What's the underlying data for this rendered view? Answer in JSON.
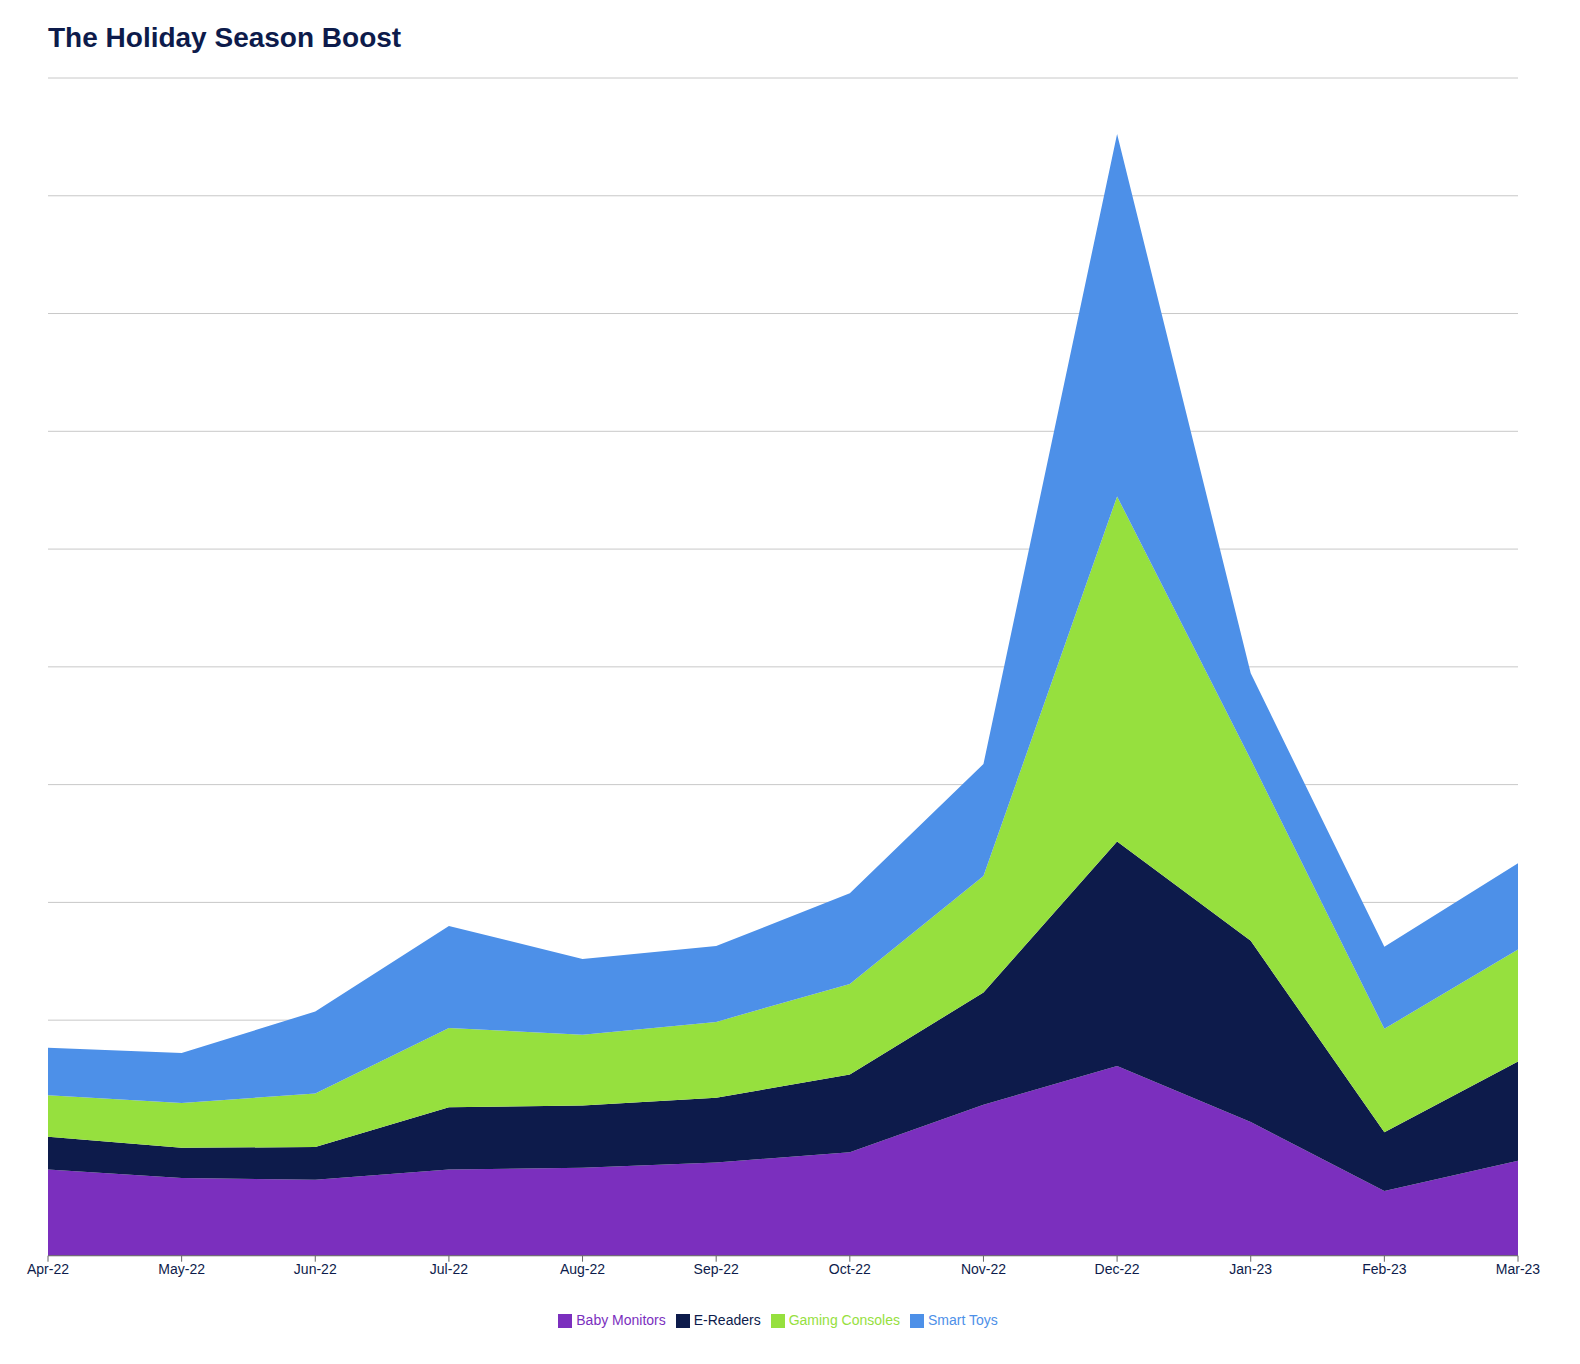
{
  "chart_data": {
    "type": "area",
    "title": "The Holiday Season Boost",
    "categories": [
      "Apr-22",
      "May-22",
      "Jun-22",
      "Jul-22",
      "Aug-22",
      "Sep-22",
      "Oct-22",
      "Nov-22",
      "Dec-22",
      "Jan-23",
      "Feb-23",
      "Mar-23"
    ],
    "series": [
      {
        "name": "Baby Monitors",
        "color": "#7B2FBE",
        "values": [
          100,
          90,
          88,
          100,
          102,
          108,
          120,
          175,
          220,
          155,
          75,
          110
        ]
      },
      {
        "name": "E-Readers",
        "color": "#0d1b4b",
        "values": [
          38,
          35,
          38,
          72,
          72,
          75,
          90,
          130,
          260,
          210,
          68,
          115
        ]
      },
      {
        "name": "Gaming Consoles",
        "color": "#96e03e",
        "values": [
          48,
          52,
          62,
          92,
          82,
          88,
          105,
          135,
          400,
          210,
          120,
          130
        ]
      },
      {
        "name": "Smart Toys",
        "color": "#4d90e8",
        "values": [
          55,
          58,
          95,
          118,
          88,
          88,
          105,
          130,
          420,
          100,
          95,
          100
        ]
      }
    ],
    "stacked": true,
    "ylim": [
      0,
      1365
    ],
    "yticks": [
      0,
      136.5,
      273,
      409.5,
      546,
      682.5,
      819,
      955.5,
      1092,
      1228.5,
      1365
    ],
    "grid": true,
    "legend": "bottom",
    "tick_labels": "x"
  }
}
